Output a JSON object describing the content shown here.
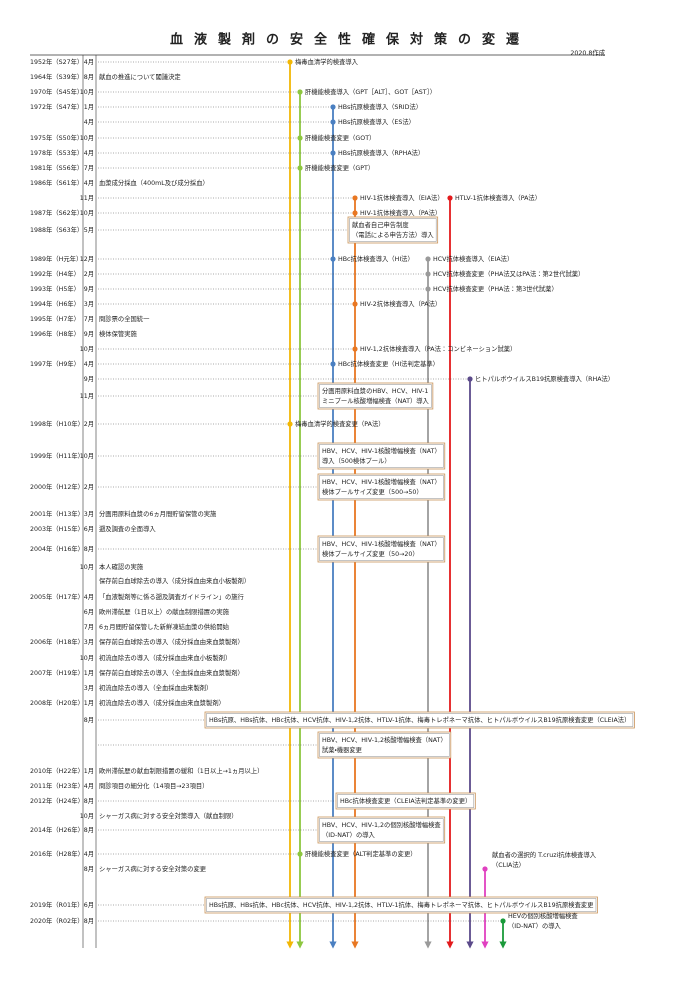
{
  "header": {
    "title": "血液製剤の安全性確保対策の変遷",
    "date": "2020.8作成"
  },
  "rows": [
    {
      "year": "1952年（S27年）",
      "month": "4月",
      "events": [
        "梅毒血清学的検査導入"
      ]
    },
    {
      "year": "1964年（S39年）",
      "month": "8月",
      "events": [
        "献血の推進について閣議決定"
      ]
    },
    {
      "year": "1970年（S45年）",
      "month": "10月",
      "events": [
        "肝機能検査導入（GPT［ALT］、GOT［AST］）"
      ]
    },
    {
      "year": "1972年（S47年）",
      "month": "1月",
      "events": [
        "HBs抗原検査導入（SRID法）"
      ]
    },
    {
      "month": "4月",
      "events": [
        "HBs抗原検査導入（ES法）"
      ]
    },
    {
      "year": "1975年（S50年）",
      "month": "10月",
      "events": [
        "肝機能検査変更（GOT）"
      ]
    },
    {
      "year": "1978年（S53年）",
      "month": "4月",
      "events": [
        "HBs抗原検査導入（RPHA法）"
      ]
    },
    {
      "year": "1981年（S56年）",
      "month": "7月",
      "events": [
        "肝機能検査変更（GPT）"
      ]
    },
    {
      "year": "1986年（S61年）",
      "month": "4月",
      "events": [
        "血漿成分採血（400mL及び成分採血）"
      ]
    },
    {
      "month": "11月",
      "events": [
        "HIV-1抗体検査導入（EIA法）",
        "HTLV-1抗体検査導入（PA法）"
      ]
    },
    {
      "year": "1987年（S62年）",
      "month": "10月",
      "events": [
        "HIV-1抗体検査導入（PA法）"
      ]
    },
    {
      "year": "1988年（S63年）",
      "month": "5月",
      "events": [
        [
          "献血者自己申告制度",
          "（電話による申告方法）導入"
        ]
      ]
    },
    {
      "year": "1989年（H元年）",
      "month": "12月",
      "events": [
        "HBc抗体検査導入（HI法）",
        "HCV抗体検査導入（EIA法）"
      ]
    },
    {
      "year": "1992年（H4年）",
      "month": "2月",
      "events": [
        "HCV抗体検査変更（PHA法又はPA法：第2世代試薬）"
      ]
    },
    {
      "year": "1993年（H5年）",
      "month": "9月",
      "events": [
        "HCV抗体検査変更（PHA法：第3世代試薬）"
      ]
    },
    {
      "year": "1994年（H6年）",
      "month": "3月",
      "events": [
        "HIV-2抗体検査導入（PA法）"
      ]
    },
    {
      "year": "1995年（H7年）",
      "month": "7月",
      "events": [
        "問診票の全国統一"
      ]
    },
    {
      "year": "1996年（H8年）",
      "month": "9月",
      "events": [
        "検体保管実施"
      ]
    },
    {
      "month": "10月",
      "events": [
        "HIV-1,2抗体検査導入（PA法：コンビネーション試薬）"
      ]
    },
    {
      "year": "1997年（H9年）",
      "month": "4月",
      "events": [
        "HBc抗体検査変更（HI法判定基準）"
      ]
    },
    {
      "month": "9月",
      "events": [
        "ヒトパルボウイルスB19抗原検査導入（RHA法）"
      ]
    },
    {
      "month": "11月",
      "events": [
        [
          "分画用原料血漿のHBV、HCV、HIV-1",
          "ミニプール核酸増幅検査（NAT）導入"
        ]
      ]
    },
    {
      "year": "1998年（H10年）",
      "month": "2月",
      "events": [
        "梅毒血清学的検査変更（PA法）"
      ]
    },
    {
      "year": "1999年（H11年）",
      "month": "10月",
      "events": [
        [
          "HBV、HCV、HIV-1核酸増幅検査（NAT）",
          "導入（500検体プール）"
        ]
      ]
    },
    {
      "year": "2000年（H12年）",
      "month": "2月",
      "events": [
        [
          "HBV、HCV、HIV-1核酸増幅検査（NAT）",
          "検体プールサイズ変更（500→50）"
        ]
      ]
    },
    {
      "year": "2001年（H13年）",
      "month": "3月",
      "events": [
        "分画用原料血漿の6ヵ月間貯留保管の実施"
      ]
    },
    {
      "year": "2003年（H15年）",
      "month": "6月",
      "events": [
        "遡及調査の全面導入"
      ]
    },
    {
      "year": "2004年（H16年）",
      "month": "8月",
      "events": [
        [
          "HBV、HCV、HIV-1核酸増幅検査（NAT）",
          "検体プールサイズ変更（50→20）"
        ]
      ]
    },
    {
      "month": "10月",
      "events": [
        "本人確認の実施"
      ]
    },
    {
      "events": [
        "保存前白血球除去の導入（成分採血由来血小板製剤）"
      ]
    },
    {
      "year": "2005年（H17年）",
      "month": "4月",
      "events": [
        "「血液製剤等に係る遡及調査ガイドライン」の施行"
      ]
    },
    {
      "month": "6月",
      "events": [
        "欧州滞航歴（1日以上）の献血制限措置の実施"
      ]
    },
    {
      "month": "7月",
      "events": [
        "6ヵ月間貯留保管した新鮮凍結血漿の供給開始"
      ]
    },
    {
      "year": "2006年（H18年）",
      "month": "3月",
      "events": [
        "保存前白血球除去の導入（成分採血由来血漿製剤）"
      ]
    },
    {
      "month": "10月",
      "events": [
        "初流血除去の導入（成分採血由来血小板製剤）"
      ]
    },
    {
      "year": "2007年（H19年）",
      "month": "1月",
      "events": [
        "保存前白血球除去の導入（全血採血由来血漿製剤）"
      ]
    },
    {
      "month": "3月",
      "events": [
        "初流血除去の導入（全血採血由来製剤）"
      ]
    },
    {
      "year": "2008年（H20年）",
      "month": "1月",
      "events": [
        "初流血除去の導入（成分採血由来血漿製剤）"
      ]
    },
    {
      "month": "8月",
      "events": [
        "HBs抗原、HBs抗体、HBc抗体、HCV抗体、HIV-1,2抗体、HTLV-1抗体、梅毒トレポネーマ抗体、ヒトパルボウイルスB19抗原検査変更（CLEIA法）"
      ]
    },
    {
      "events": [
        [
          "HBV、HCV、HIV-1,2核酸増幅検査（NAT）",
          "試薬・機器変更"
        ]
      ]
    },
    {
      "year": "2010年（H22年）",
      "month": "1月",
      "events": [
        "欧州滞航歴の献血制限措置の緩和（1日以上→1ヵ月以上）"
      ]
    },
    {
      "year": "2011年（H23年）",
      "month": "4月",
      "events": [
        "問診項目の細分化（14項目→23項目）"
      ]
    },
    {
      "year": "2012年（H24年）",
      "month": "8月",
      "events": [
        "HBc抗体検査変更（CLEIA法判定基準の変更）"
      ]
    },
    {
      "month": "10月",
      "events": [
        "シャーガス病に対する安全対策導入（献血制限）"
      ]
    },
    {
      "year": "2014年（H26年）",
      "month": "8月",
      "events": [
        [
          "HBV、HCV、HIV-1,2の個別核酸増幅検査",
          "（ID-NAT）の導入"
        ]
      ]
    },
    {
      "year": "2016年（H28年）",
      "month": "4月",
      "events": [
        "肝機能検査変更（ALT判定基準の変更）"
      ]
    },
    {
      "month": "8月",
      "events": [
        "シャーガス病に対する安全対策の変更",
        [
          "献血者の選択的 T.cruzi抗体検査導入",
          "（CLIA法）"
        ]
      ]
    },
    {
      "year": "2019年（R01年）",
      "month": "6月",
      "events": [
        "HBs抗原、HBs抗体、HBc抗体、HCV抗体、HIV-1,2抗体、HTLV-1抗体、梅毒トレポネーマ抗体、ヒトパルボウイルスB19抗原検査変更"
      ]
    },
    {
      "year": "2020年（R02年）",
      "month": "8月",
      "events": [
        [
          "HEVの個別核酸増幅検査",
          "（ID-NAT）の導入"
        ]
      ]
    }
  ]
}
